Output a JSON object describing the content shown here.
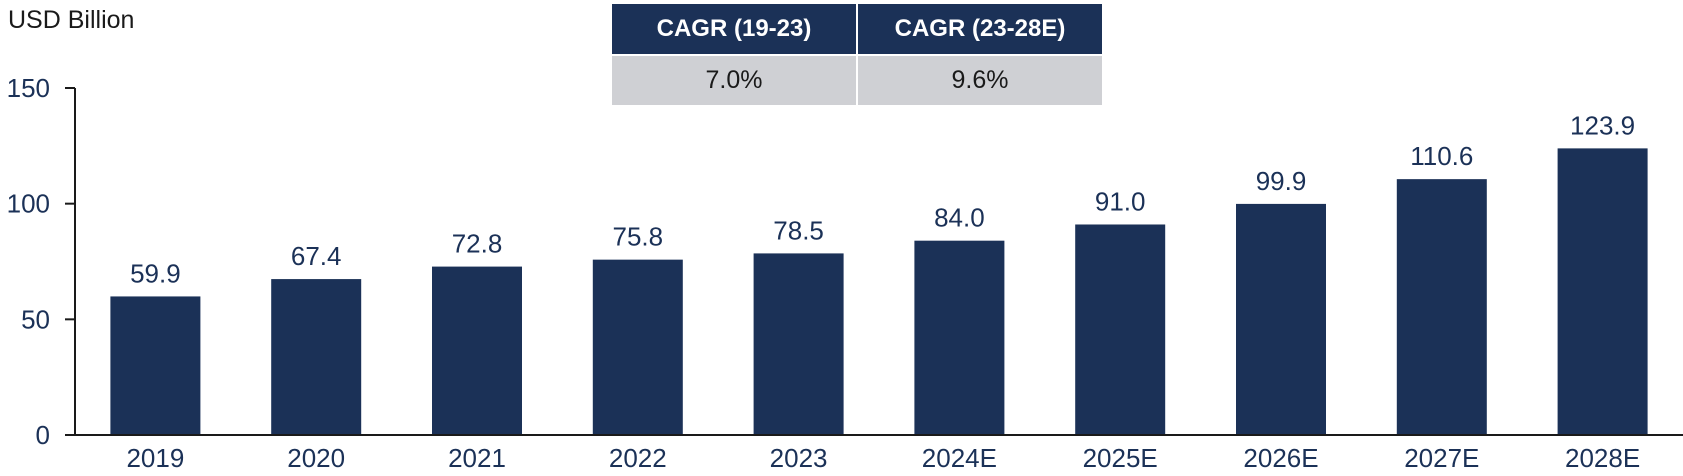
{
  "chart_data": {
    "type": "bar",
    "unit_label": "USD Billion",
    "categories": [
      "2019",
      "2020",
      "2021",
      "2022",
      "2023",
      "2024E",
      "2025E",
      "2026E",
      "2027E",
      "2028E"
    ],
    "values": [
      59.9,
      67.4,
      72.8,
      75.8,
      78.5,
      84.0,
      91.0,
      99.9,
      110.6,
      123.9
    ],
    "value_labels": [
      "59.9",
      "67.4",
      "72.8",
      "75.8",
      "78.5",
      "84.0",
      "91.0",
      "99.9",
      "110.6",
      "123.9"
    ],
    "ylim": [
      0,
      150
    ],
    "yticks": [
      0,
      50,
      100,
      150
    ],
    "ytick_labels": [
      "0",
      "50",
      "100",
      "150"
    ],
    "grid": false,
    "legend": "none",
    "colors": {
      "bar": "#1b3157",
      "axis": "#1a1a1a",
      "text": "#1b3157"
    }
  },
  "cagr_table": {
    "headers": [
      "CAGR (19-23)",
      "CAGR (23-28E)"
    ],
    "values": [
      "7.0%",
      "9.6%"
    ],
    "colors": {
      "header_bg": "#1b3157",
      "header_text": "#ffffff",
      "cell_bg": "#cfd0d4"
    }
  }
}
